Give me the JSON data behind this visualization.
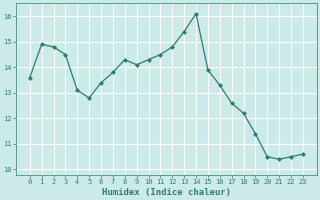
{
  "x": [
    0,
    1,
    2,
    3,
    4,
    5,
    6,
    7,
    8,
    9,
    10,
    11,
    12,
    13,
    14,
    15,
    16,
    17,
    18,
    19,
    20,
    21,
    22,
    23
  ],
  "y": [
    13.6,
    14.9,
    14.8,
    14.5,
    13.1,
    12.8,
    13.4,
    13.8,
    14.3,
    14.1,
    14.3,
    14.5,
    14.8,
    15.4,
    16.1,
    13.9,
    13.3,
    12.6,
    12.2,
    11.4,
    10.5,
    10.4,
    10.5,
    10.6
  ],
  "xlabel": "Humidex (Indice chaleur)",
  "ylim": [
    9.8,
    16.5
  ],
  "yticks": [
    10,
    11,
    12,
    13,
    14,
    15,
    16
  ],
  "xticks": [
    0,
    1,
    2,
    3,
    4,
    5,
    6,
    7,
    8,
    9,
    10,
    11,
    12,
    13,
    14,
    15,
    16,
    17,
    18,
    19,
    20,
    21,
    22,
    23
  ],
  "line_color": "#2e7d6e",
  "marker": "D",
  "marker_size": 2.0,
  "bg_color": "#cceae8",
  "grid_color": "#ffffff",
  "xlabel_color": "#2e7d6e",
  "tick_color": "#2e7d6e",
  "tick_fontsize": 5.0,
  "xlabel_fontsize": 6.5,
  "linewidth": 0.9
}
